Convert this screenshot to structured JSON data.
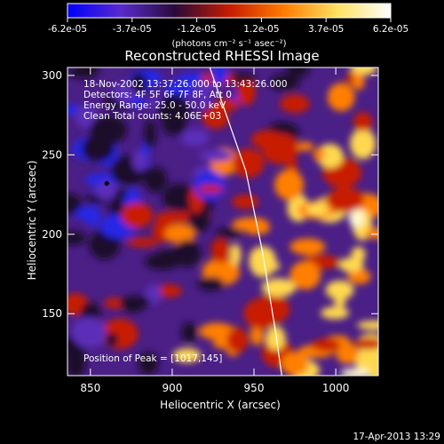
{
  "chart_data": {
    "type": "heatmap",
    "title": "Reconstructed RHESSI Image",
    "xlabel": "Heliocentric X (arcsec)",
    "ylabel": "Heliocentric Y (arcsec)",
    "xlim": [
      836,
      1026
    ],
    "ylim": [
      111,
      305
    ],
    "x_ticks": [
      850,
      900,
      950,
      1000
    ],
    "y_ticks": [
      150,
      200,
      250,
      300
    ],
    "colorbar": {
      "ticks": [
        "-6.2e-05",
        "-3.7e-05",
        "-1.2e-05",
        "1.2e-05",
        "3.7e-05",
        "6.2e-05"
      ],
      "range": [
        -6.2e-05,
        6.2e-05
      ],
      "units_label": "(photons cm⁻² s⁻¹ asec⁻²)",
      "colormap": [
        "#0000ff",
        "#5a2acb",
        "#2a0a3a",
        "#c51c00",
        "#ff7a00",
        "#ffe060",
        "#ffffff"
      ]
    },
    "annotations": [
      "18-Nov-2002 13:37:26.000 to 13:43:26.000",
      "Detectors: 4F 5F 6F 7F 8F, Att 0",
      "Energy Range: 25.0 - 50.0 keV",
      "Clean     Total counts: 4.06E+03"
    ],
    "peak_label": "Position of Peak = [1017,145]",
    "peak_position": [
      1017,
      145
    ],
    "marker_position": [
      860,
      232
    ],
    "limb_curve": [
      [
        923,
        305
      ],
      [
        945,
        240
      ],
      [
        955,
        190
      ],
      [
        963,
        140
      ],
      [
        967,
        111
      ]
    ]
  },
  "footer_timestamp": "17-Apr-2013 13:29"
}
